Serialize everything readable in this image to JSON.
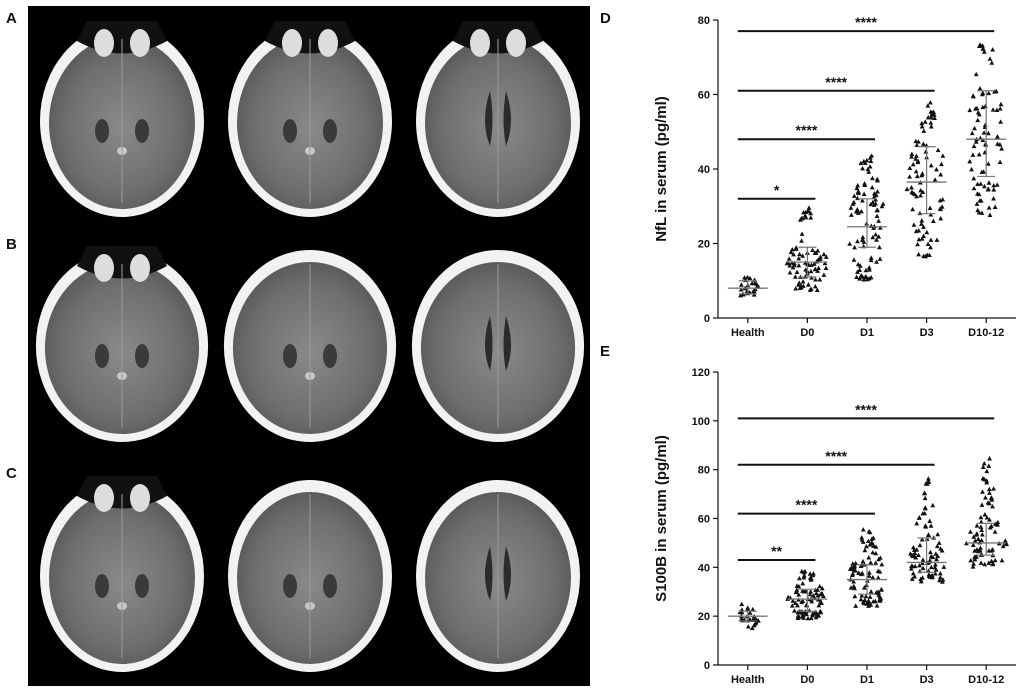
{
  "figure": {
    "labels": {
      "A": "A",
      "B": "B",
      "C": "C",
      "D": "D",
      "E": "E"
    },
    "colors": {
      "ct_background": "#000000",
      "marker": "#111111",
      "axis": "#111111"
    }
  },
  "chart_data": [
    {
      "panel": "D",
      "type": "scatter",
      "ylabel": "NfL in serum (pg/ml)",
      "categories": [
        "Health",
        "D0",
        "D1",
        "D3",
        "D10-12"
      ],
      "ylim": [
        0,
        80
      ],
      "yticks": [
        0,
        20,
        40,
        60,
        80
      ],
      "median": [
        8,
        15,
        24.5,
        36.5,
        48
      ],
      "iqr": [
        [
          6.5,
          10
        ],
        [
          11,
          19
        ],
        [
          19,
          32
        ],
        [
          28,
          46
        ],
        [
          38,
          61
        ]
      ],
      "range": [
        [
          6,
          11
        ],
        [
          7,
          30
        ],
        [
          10,
          45
        ],
        [
          16,
          58
        ],
        [
          27,
          75
        ]
      ],
      "n": [
        25,
        80,
        90,
        85,
        80
      ],
      "comparisons": [
        {
          "from": "Health",
          "to": "D0",
          "label": "*",
          "y": 32
        },
        {
          "from": "Health",
          "to": "D1",
          "label": "****",
          "y": 48
        },
        {
          "from": "Health",
          "to": "D3",
          "label": "****",
          "y": 61
        },
        {
          "from": "Health",
          "to": "D10-12",
          "label": "****",
          "y": 77
        }
      ]
    },
    {
      "panel": "E",
      "type": "scatter",
      "ylabel": "S100B in serum (pg/ml)",
      "categories": [
        "Health",
        "D0",
        "D1",
        "D3",
        "D10-12"
      ],
      "ylim": [
        0,
        120
      ],
      "yticks": [
        0,
        20,
        40,
        60,
        80,
        100,
        120
      ],
      "median": [
        20,
        27,
        35,
        42,
        50
      ],
      "iqr": [
        [
          18,
          22
        ],
        [
          22,
          31
        ],
        [
          29,
          41
        ],
        [
          38,
          52
        ],
        [
          45,
          58
        ]
      ],
      "range": [
        [
          15,
          25
        ],
        [
          19,
          39
        ],
        [
          24,
          56
        ],
        [
          34,
          77
        ],
        [
          40,
          85
        ]
      ],
      "n": [
        25,
        85,
        90,
        85,
        80
      ],
      "comparisons": [
        {
          "from": "Health",
          "to": "D0",
          "label": "**",
          "y": 43
        },
        {
          "from": "Health",
          "to": "D1",
          "label": "****",
          "y": 62
        },
        {
          "from": "Health",
          "to": "D3",
          "label": "****",
          "y": 82
        },
        {
          "from": "Health",
          "to": "D10-12",
          "label": "****",
          "y": 101
        }
      ]
    }
  ]
}
